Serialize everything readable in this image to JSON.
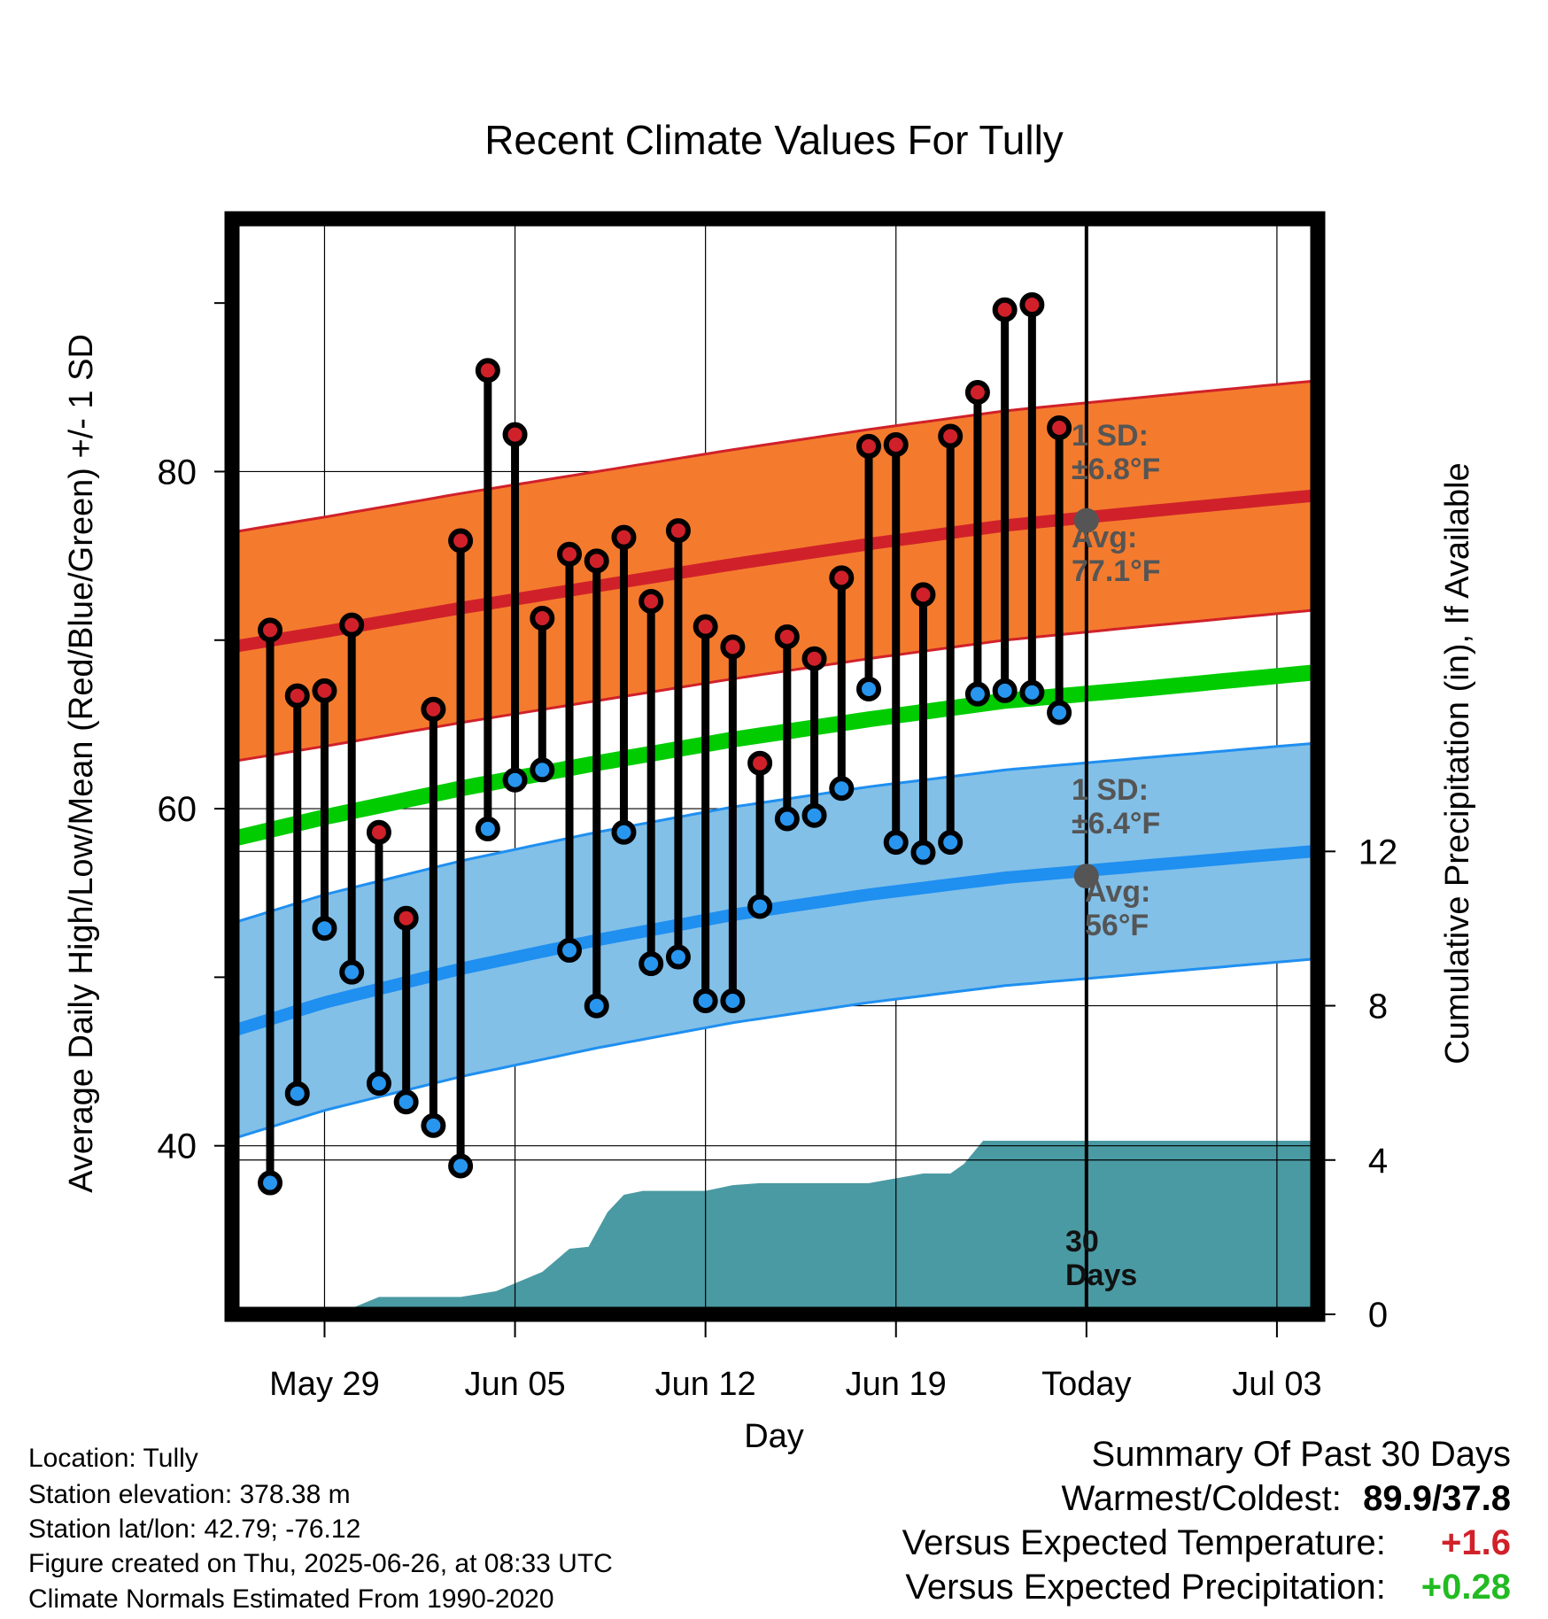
{
  "chart_data": {
    "type": "line",
    "title": "Recent Climate Values For Tully",
    "xlabel": "Day",
    "ylabel": "Average Daily High/Low/Mean (Red/Blue/Green) +/- 1 SD",
    "y2label": "Cumulative Precipitation (in), If Available",
    "xlim": [
      -3.4,
      36.5
    ],
    "ylim": [
      30,
      95
    ],
    "y2lim": [
      0,
      28.4
    ],
    "yticks": [
      40,
      60,
      80
    ],
    "y2ticks": [
      0,
      4,
      8,
      12
    ],
    "x_tick_labels": [
      {
        "x": 0,
        "label": "May 29"
      },
      {
        "x": 7,
        "label": "Jun 05"
      },
      {
        "x": 14,
        "label": "Jun 12"
      },
      {
        "x": 21,
        "label": "Jun 19"
      },
      {
        "x": 28,
        "label": "Today"
      },
      {
        "x": 35,
        "label": "Jul 03"
      }
    ],
    "today_x": 28,
    "daily": [
      {
        "x": -2,
        "high": 70.6,
        "low": 37.8
      },
      {
        "x": -1,
        "high": 66.7,
        "low": 43.1
      },
      {
        "x": 0,
        "high": 67.0,
        "low": 52.9
      },
      {
        "x": 1,
        "high": 70.9,
        "low": 50.3
      },
      {
        "x": 2,
        "high": 58.6,
        "low": 43.7
      },
      {
        "x": 3,
        "high": 53.5,
        "low": 42.6
      },
      {
        "x": 4,
        "high": 65.9,
        "low": 41.2
      },
      {
        "x": 5,
        "high": 75.9,
        "low": 38.8
      },
      {
        "x": 6,
        "high": 86.0,
        "low": 58.8
      },
      {
        "x": 7,
        "high": 82.2,
        "low": 61.7
      },
      {
        "x": 8,
        "high": 71.3,
        "low": 62.3
      },
      {
        "x": 9,
        "high": 75.1,
        "low": 51.6
      },
      {
        "x": 10,
        "high": 74.7,
        "low": 48.3
      },
      {
        "x": 11,
        "high": 76.1,
        "low": 58.6
      },
      {
        "x": 12,
        "high": 72.3,
        "low": 50.8
      },
      {
        "x": 13,
        "high": 76.5,
        "low": 51.2
      },
      {
        "x": 14,
        "high": 70.8,
        "low": 48.6
      },
      {
        "x": 15,
        "high": 69.6,
        "low": 48.6
      },
      {
        "x": 16,
        "high": 62.7,
        "low": 54.2
      },
      {
        "x": 17,
        "high": 70.2,
        "low": 59.4
      },
      {
        "x": 18,
        "high": 68.9,
        "low": 59.6
      },
      {
        "x": 19,
        "high": 73.7,
        "low": 61.2
      },
      {
        "x": 20,
        "high": 81.5,
        "low": 67.1
      },
      {
        "x": 21,
        "high": 81.6,
        "low": 58.0
      },
      {
        "x": 22,
        "high": 72.7,
        "low": 57.4
      },
      {
        "x": 23,
        "high": 82.1,
        "low": 58.0
      },
      {
        "x": 24,
        "high": 84.7,
        "low": 66.8
      },
      {
        "x": 25,
        "high": 89.6,
        "low": 67.0
      },
      {
        "x": 26,
        "high": 89.9,
        "low": 66.9
      },
      {
        "x": 27,
        "high": 82.6,
        "low": 65.7
      }
    ],
    "normals": {
      "x": [
        -3.4,
        0,
        5,
        10,
        15,
        20,
        25,
        30,
        36.5
      ],
      "high_mean": [
        69.6,
        70.5,
        71.9,
        73.2,
        74.5,
        75.7,
        76.8,
        77.6,
        78.6
      ],
      "low_mean": [
        46.8,
        48.5,
        50.5,
        52.2,
        53.7,
        54.9,
        55.9,
        56.6,
        57.5
      ],
      "avg_mean": [
        58.2,
        59.5,
        61.2,
        62.7,
        64.1,
        65.3,
        66.4,
        67.1,
        68.1
      ],
      "high_sd": 6.8,
      "low_sd": 6.4,
      "colors": {
        "high_band": "#f47b2d",
        "high_line": "#d0212a",
        "low_band": "#82c0e8",
        "low_line": "#1f8ff0",
        "avg_line": "#00cc00",
        "precip": "#4a9aa3",
        "high_dot": "#d0212a",
        "low_dot": "#2896ef"
      }
    },
    "precipitation": {
      "x": [
        -3.4,
        -0.5,
        0.8,
        2,
        5,
        6.3,
        8,
        9,
        9.7,
        10.4,
        11,
        11.7,
        12,
        13,
        14,
        15,
        16,
        17,
        20,
        21.2,
        22,
        23,
        23.5,
        24.2,
        36.5
      ],
      "cum": [
        0.0,
        0.05,
        0.1,
        0.45,
        0.45,
        0.6,
        1.1,
        1.7,
        1.75,
        2.65,
        3.1,
        3.2,
        3.2,
        3.2,
        3.2,
        3.35,
        3.4,
        3.4,
        3.4,
        3.55,
        3.65,
        3.65,
        3.9,
        4.5,
        4.5
      ]
    },
    "annotations": {
      "high_sd_label": [
        "1 SD:",
        "±6.8°F"
      ],
      "high_avg_label": [
        "Avg:",
        "77.1°F"
      ],
      "low_sd_label": [
        "1 SD:",
        "±6.4°F"
      ],
      "low_avg_label": [
        "Avg:",
        "56°F"
      ],
      "today_label": [
        "30",
        "Days"
      ],
      "today_high_avg": 77.1,
      "today_low_avg": 56.0
    }
  },
  "footer": {
    "location": "Location: Tully",
    "elevation": "Station elevation: 378.38 m",
    "latlon": "Station lat/lon: 42.79; -76.12",
    "created": "Figure created on Thu, 2025-06-26, at 08:33 UTC",
    "normals": "Climate Normals Estimated From 1990-2020"
  },
  "summary": {
    "title": "Summary Of Past 30 Days",
    "warm_cold_label": "Warmest/Coldest:",
    "warm_cold_value": "89.9/37.8",
    "temp_label": "Versus Expected Temperature:",
    "temp_value": "+1.6",
    "temp_color": "#d0212a",
    "precip_label": "Versus Expected Precipitation:",
    "precip_value": "+0.28",
    "precip_color": "#22bb22"
  }
}
